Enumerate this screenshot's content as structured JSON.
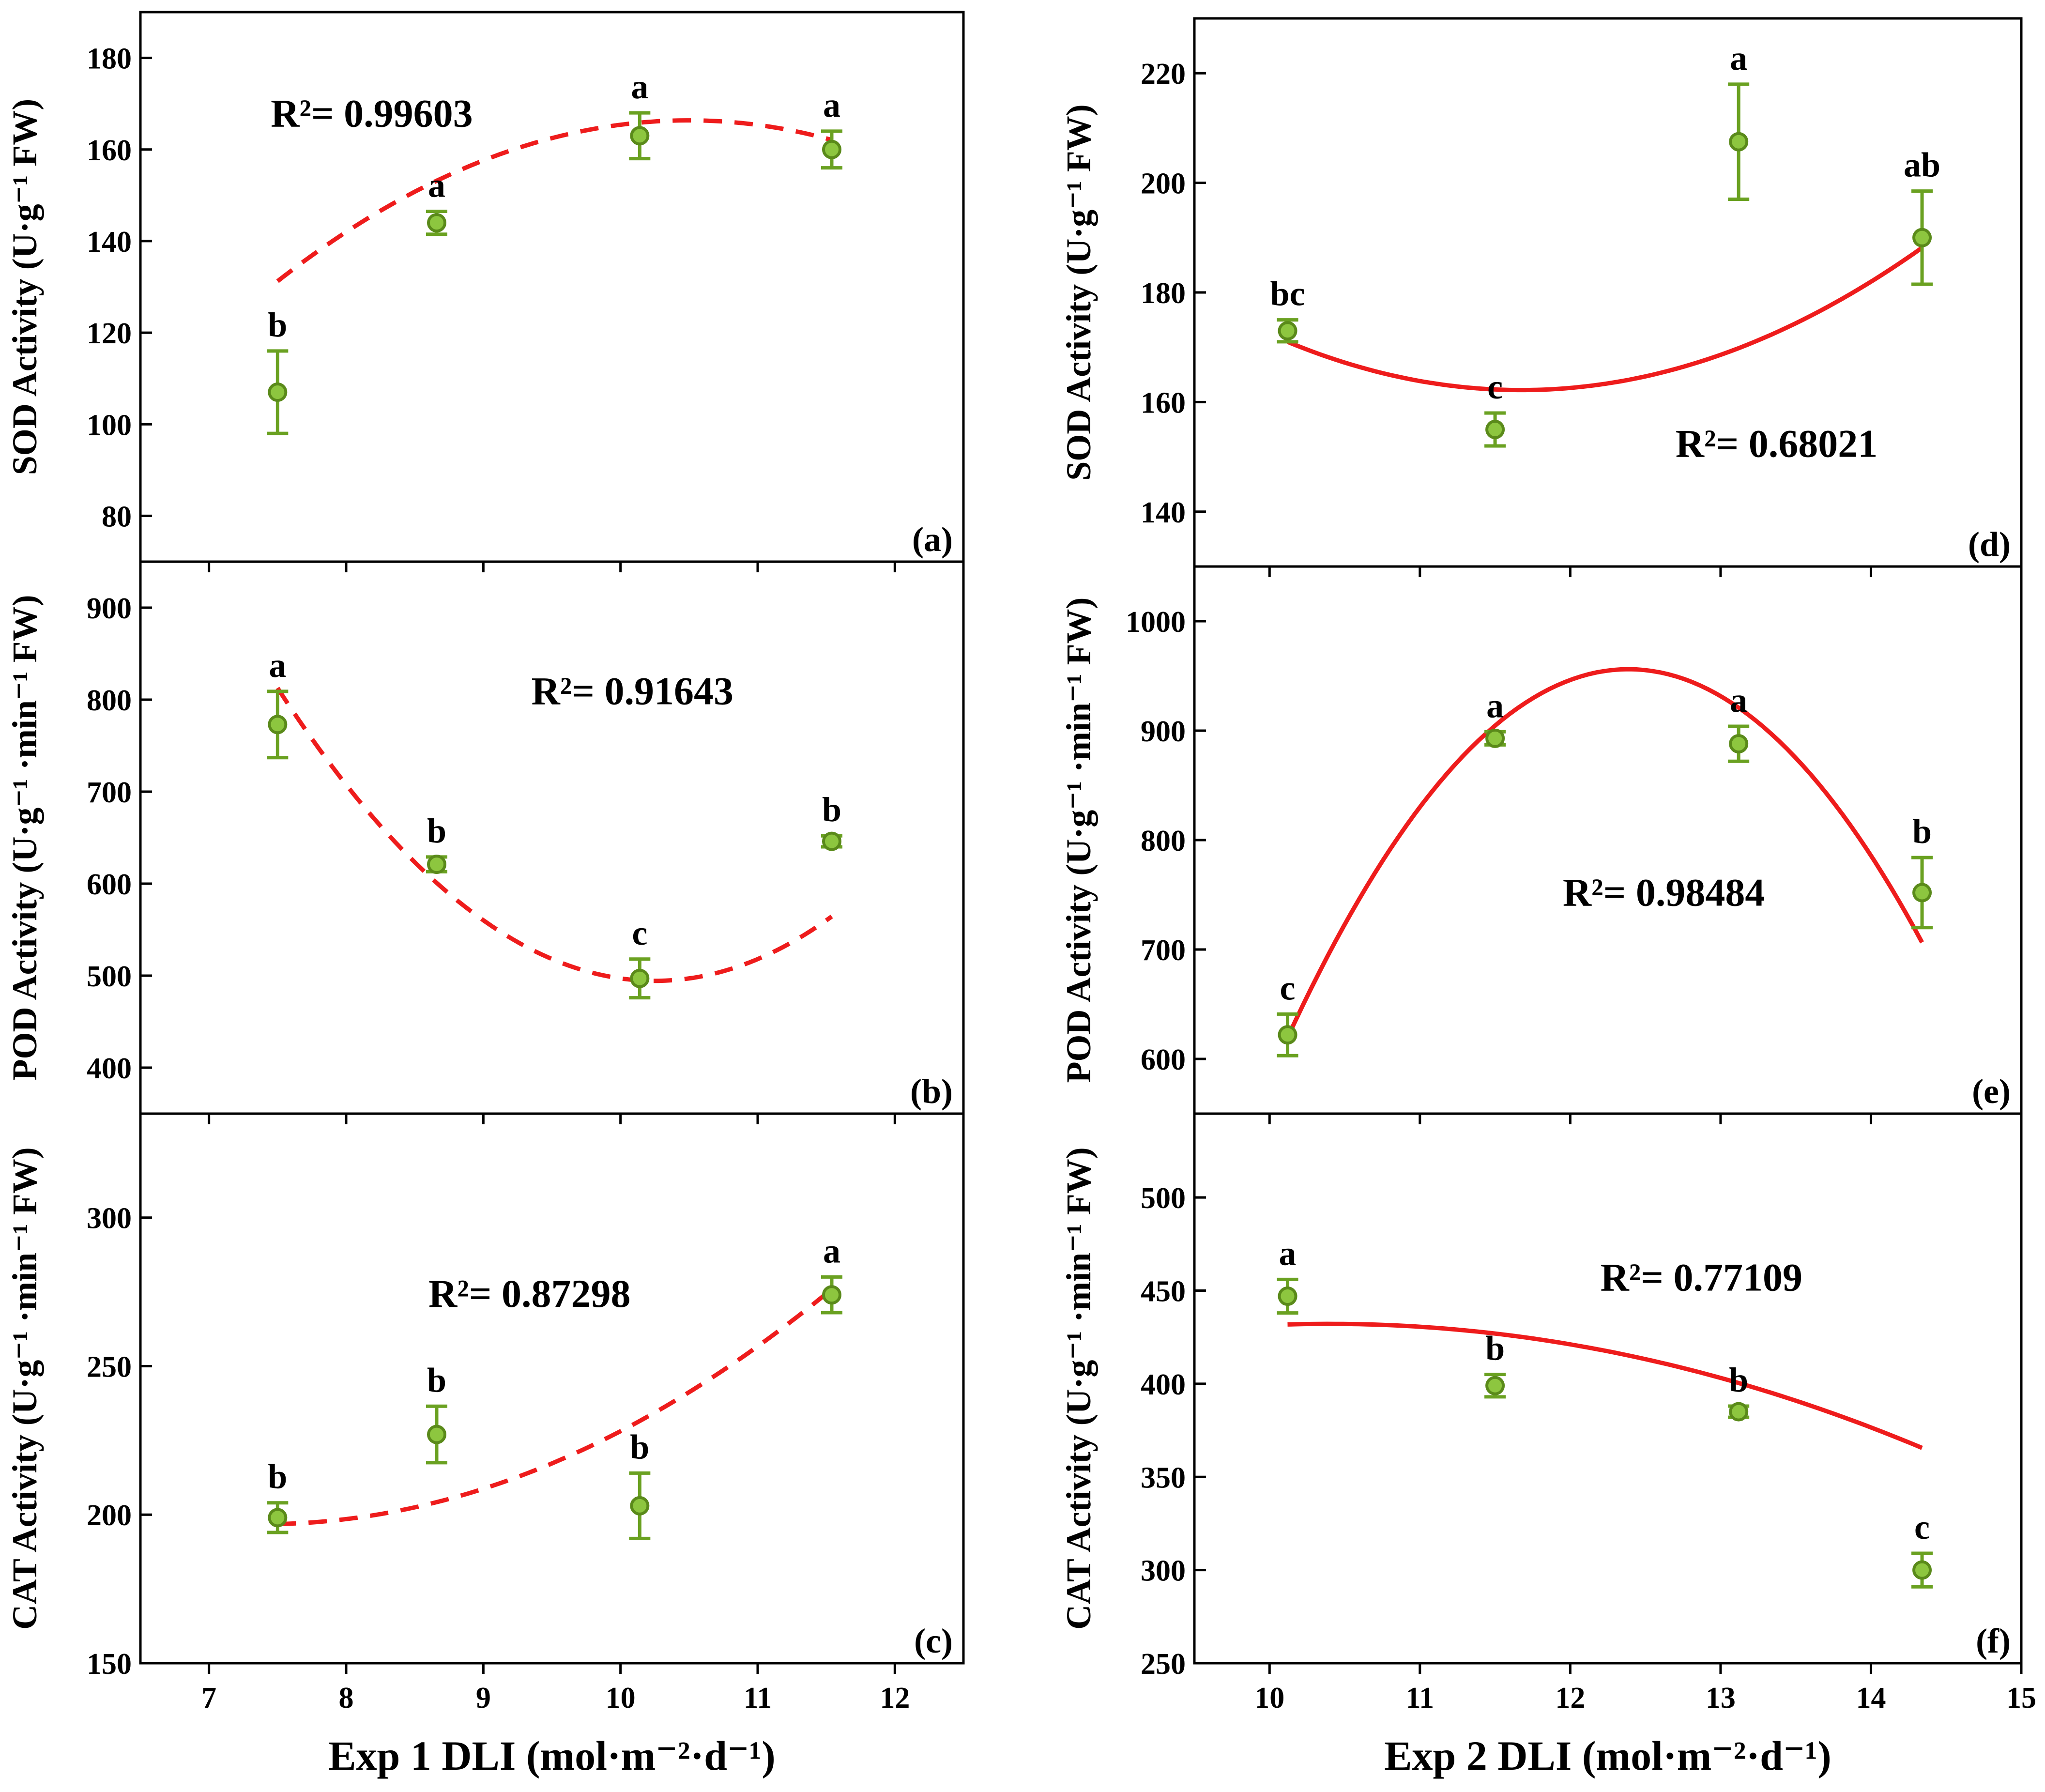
{
  "chart_data": [
    {
      "id": "a",
      "type": "scatter",
      "panel_label": "(a)",
      "ylabel": "SOD Activity (U·g⁻¹ FW)",
      "x": [
        7.5,
        8.66,
        10.14,
        11.54
      ],
      "values": [
        107,
        144,
        163,
        160
      ],
      "errors": [
        9,
        2.5,
        5,
        4
      ],
      "letters": [
        "b",
        "a",
        "a",
        "a"
      ],
      "fit": {
        "style": "dashed",
        "coef": [
          -264.8,
          82.16,
          -3.914
        ],
        "x_range": [
          7.5,
          11.54
        ]
      },
      "r2_label": "R²= 0.99603",
      "r2_anchor": [
        7.45,
        165
      ],
      "xlim": [
        6.5,
        12.5
      ],
      "ylim": [
        70,
        190
      ],
      "xticks": [
        "7",
        "8",
        "9",
        "10",
        "11",
        "12"
      ],
      "yticks": [
        "80",
        "100",
        "120",
        "140",
        "160",
        "180"
      ]
    },
    {
      "id": "b",
      "type": "scatter",
      "panel_label": "(b)",
      "ylabel": "POD Activity (U·g⁻¹ ·min⁻¹ FW)",
      "x": [
        7.5,
        8.66,
        10.14,
        11.54
      ],
      "values": [
        773,
        621,
        497,
        646
      ],
      "errors": [
        36,
        8,
        21,
        6
      ],
      "letters": [
        "a",
        "b",
        "c",
        "b"
      ],
      "fit": {
        "style": "dashed",
        "coef": [
          4916,
          -862.7,
          42.08
        ],
        "x_range": [
          7.5,
          11.54
        ]
      },
      "r2_label": "R²= 0.91643",
      "r2_anchor": [
        9.35,
        795
      ],
      "xlim": [
        6.5,
        12.5
      ],
      "ylim": [
        350,
        950
      ],
      "xticks": [
        "7",
        "8",
        "9",
        "10",
        "11",
        "12"
      ],
      "yticks": [
        "400",
        "500",
        "600",
        "700",
        "800",
        "900"
      ]
    },
    {
      "id": "c",
      "type": "scatter",
      "panel_label": "(c)",
      "ylabel": "CAT Activity (U·g⁻¹ ·min⁻¹ FW)",
      "x": [
        7.5,
        8.66,
        10.14,
        11.54
      ],
      "values": [
        199,
        227,
        203,
        274
      ],
      "errors": [
        5,
        9.5,
        11,
        6
      ],
      "letters": [
        "b",
        "b",
        "b",
        "a"
      ],
      "fit": {
        "style": "dashed",
        "coef": [
          447.5,
          -67.86,
          4.592
        ],
        "x_range": [
          7.5,
          11.54
        ]
      },
      "r2_label": "R²= 0.87298",
      "r2_anchor": [
        8.6,
        270
      ],
      "xlim": [
        6.5,
        12.5
      ],
      "ylim": [
        150,
        335
      ],
      "xticks": [
        "7",
        "8",
        "9",
        "10",
        "11",
        "12"
      ],
      "yticks": [
        "150",
        "200",
        "250",
        "300"
      ],
      "xlabel": "Exp 1  DLI (mol·m⁻²·d⁻¹)"
    },
    {
      "id": "d",
      "type": "scatter",
      "panel_label": "(d)",
      "ylabel": "SOD Activity (U·g⁻¹ FW)",
      "x": [
        10.12,
        11.5,
        13.12,
        14.34
      ],
      "values": [
        173,
        155,
        207.5,
        190
      ],
      "errors": [
        2,
        3,
        10.5,
        8.5
      ],
      "letters": [
        "bc",
        "c",
        "a",
        "ab"
      ],
      "fit": {
        "style": "solid",
        "coef": [
          659.5,
          -85.21,
          3.65
        ],
        "x_range": [
          10.12,
          14.34
        ]
      },
      "r2_label": "R²= 0.68021",
      "r2_anchor": [
        12.7,
        150
      ],
      "xlim": [
        9.5,
        15
      ],
      "ylim": [
        130,
        230
      ],
      "xticks": [
        "10",
        "11",
        "12",
        "13",
        "14",
        "15"
      ],
      "yticks": [
        "140",
        "160",
        "180",
        "200",
        "220"
      ]
    },
    {
      "id": "e",
      "type": "scatter",
      "panel_label": "(e)",
      "ylabel": "POD Activity (U·g⁻¹ ·min⁻¹ FW)",
      "x": [
        10.12,
        11.5,
        13.12,
        14.34
      ],
      "values": [
        622,
        893,
        888,
        752
      ],
      "errors": [
        19,
        6,
        16,
        32
      ],
      "letters": [
        "c",
        "a",
        "a",
        "b"
      ],
      "fit": {
        "style": "solid",
        "coef": [
          -9090,
          1622,
          -65.47
        ],
        "x_range": [
          10.12,
          14.34
        ]
      },
      "r2_label": "R²= 0.98484",
      "r2_anchor": [
        11.95,
        740
      ],
      "xlim": [
        9.5,
        15
      ],
      "ylim": [
        550,
        1050
      ],
      "xticks": [
        "10",
        "11",
        "12",
        "13",
        "14",
        "15"
      ],
      "yticks": [
        "600",
        "700",
        "800",
        "900",
        "1000"
      ]
    },
    {
      "id": "f",
      "type": "scatter",
      "panel_label": "(f)",
      "ylabel": "CAT Activity (U·g⁻¹ ·min⁻¹ FW)",
      "x": [
        10.12,
        11.5,
        13.12,
        14.34
      ],
      "values": [
        447,
        399,
        385,
        300
      ],
      "errors": [
        9,
        6,
        3,
        9
      ],
      "letters": [
        "a",
        "b",
        "b",
        "c"
      ],
      "fit": {
        "style": "solid",
        "coef": [
          -30.81,
          89.06,
          -4.283
        ],
        "x_range": [
          10.12,
          14.34
        ]
      },
      "r2_label": "R²= 0.77109",
      "r2_anchor": [
        12.2,
        450
      ],
      "xlim": [
        9.5,
        15
      ],
      "ylim": [
        250,
        545
      ],
      "xticks": [
        "10",
        "11",
        "12",
        "13",
        "14",
        "15"
      ],
      "yticks": [
        "250",
        "300",
        "350",
        "400",
        "450",
        "500"
      ],
      "xlabel": "Exp 2  DLI (mol·m⁻²·d⁻¹)"
    }
  ]
}
